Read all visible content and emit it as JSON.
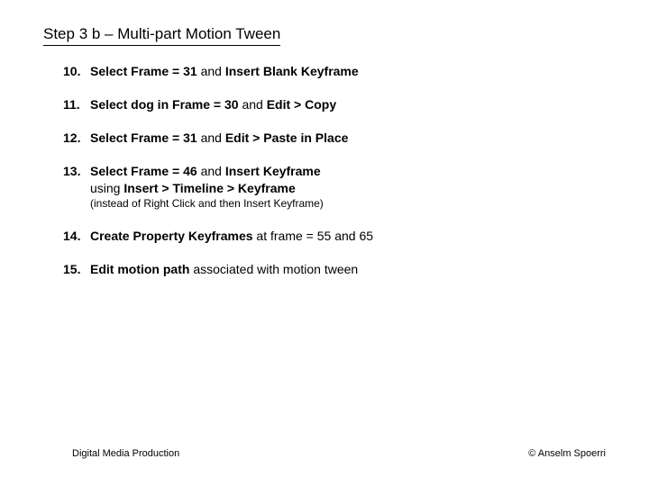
{
  "title": "Step 3 b – Multi-part Motion Tween",
  "items": [
    {
      "num": "10.",
      "segments": [
        {
          "t": "Select Frame = 31",
          "b": true
        },
        {
          "t": " and ",
          "b": false
        },
        {
          "t": "Insert Blank Keyframe",
          "b": true
        }
      ]
    },
    {
      "num": "11.",
      "segments": [
        {
          "t": "Select dog in Frame = 30",
          "b": true
        },
        {
          "t": " and ",
          "b": false
        },
        {
          "t": "Edit > Copy",
          "b": true
        }
      ]
    },
    {
      "num": "12.",
      "segments": [
        {
          "t": "Select Frame = 31",
          "b": true
        },
        {
          "t": " and ",
          "b": false
        },
        {
          "t": "Edit > Paste in Place",
          "b": true
        }
      ]
    },
    {
      "num": "13.",
      "segments": [
        {
          "t": "Select Frame = 46",
          "b": true
        },
        {
          "t": " and ",
          "b": false
        },
        {
          "t": "Insert Keyframe",
          "b": true
        }
      ],
      "cont_segments": [
        {
          "t": "using ",
          "b": false
        },
        {
          "t": "Insert > Timeline > Keyframe",
          "b": true
        }
      ],
      "note": "(instead of Right Click and then Insert Keyframe)"
    },
    {
      "num": "14.",
      "segments": [
        {
          "t": "Create Property Keyframes",
          "b": true
        },
        {
          "t": " at frame = 55 and 65",
          "b": false
        }
      ]
    },
    {
      "num": "15.",
      "segments": [
        {
          "t": "Edit motion path",
          "b": true
        },
        {
          "t": " associated with motion tween",
          "b": false
        }
      ]
    }
  ],
  "footer_left": "Digital Media Production",
  "footer_right": "© Anselm Spoerri"
}
